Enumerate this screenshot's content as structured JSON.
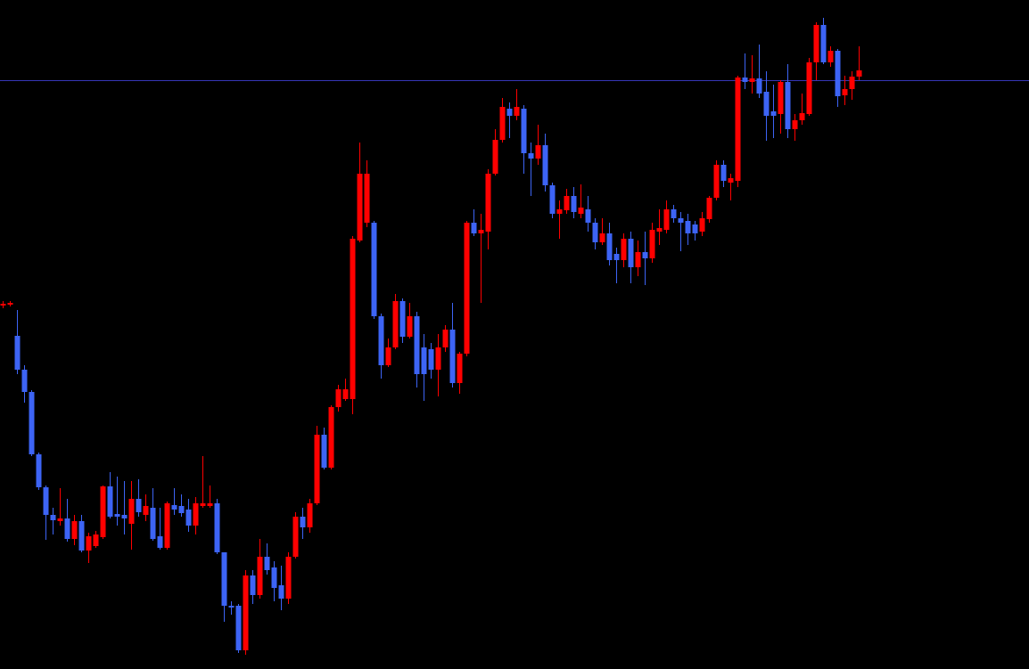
{
  "chart_data": {
    "type": "candlestick",
    "up_color": "#ff0000",
    "down_color": "#3d64f5",
    "price_line": 661,
    "price_line_color": "#3535b5",
    "ylim": [
      0,
      751
    ],
    "open": [
      408,
      409,
      374,
      336,
      311,
      241,
      204,
      173,
      166,
      169,
      146,
      166,
      133,
      138,
      148,
      205,
      174,
      173,
      163,
      191,
      173,
      181,
      149,
      136,
      184,
      183,
      179,
      161,
      183,
      183,
      186,
      131,
      71,
      71,
      21,
      105,
      83,
      126,
      114,
      94,
      79,
      126,
      171,
      159,
      186,
      263,
      226,
      294,
      303,
      303,
      481,
      501,
      501,
      396,
      341,
      361,
      413,
      373,
      396,
      361,
      359,
      336,
      361,
      381,
      321,
      354,
      501,
      489,
      491,
      556,
      594,
      629,
      621,
      629,
      579,
      573,
      588,
      543,
      511,
      515,
      531,
      511,
      516,
      501,
      479,
      489,
      466,
      459,
      483,
      451,
      468,
      461,
      491,
      493,
      516,
      506,
      503,
      499,
      491,
      505,
      529,
      566,
      546,
      548,
      664,
      659,
      663,
      648,
      626,
      623,
      659,
      606,
      616,
      623,
      681,
      723,
      681,
      694,
      644,
      651,
      665
    ],
    "high": [
      413,
      413,
      403,
      341,
      313,
      243,
      206,
      181,
      203,
      191,
      173,
      173,
      153,
      155,
      206,
      221,
      216,
      211,
      211,
      213,
      196,
      203,
      181,
      188,
      203,
      196,
      191,
      193,
      239,
      206,
      191,
      131,
      76,
      73,
      111,
      111,
      146,
      141,
      121,
      116,
      131,
      176,
      181,
      191,
      273,
      271,
      296,
      319,
      326,
      486,
      591,
      571,
      503,
      399,
      371,
      421,
      416,
      411,
      401,
      376,
      366,
      376,
      386,
      411,
      356,
      503,
      516,
      511,
      561,
      606,
      641,
      636,
      651,
      633,
      591,
      611,
      601,
      546,
      526,
      539,
      541,
      544,
      531,
      506,
      506,
      501,
      473,
      489,
      491,
      481,
      491,
      501,
      516,
      526,
      521,
      513,
      511,
      503,
      513,
      531,
      571,
      571,
      556,
      666,
      691,
      689,
      701,
      671,
      656,
      661,
      679,
      623,
      646,
      686,
      726,
      731,
      699,
      696,
      666,
      671,
      699
    ],
    "low": [
      405,
      407,
      331,
      299,
      239,
      201,
      145,
      151,
      161,
      143,
      139,
      131,
      119,
      136,
      146,
      169,
      161,
      151,
      134,
      171,
      166,
      144,
      134,
      134,
      173,
      171,
      154,
      151,
      181,
      181,
      129,
      53,
      61,
      18,
      16,
      73,
      79,
      106,
      76,
      66,
      73,
      124,
      146,
      153,
      184,
      224,
      224,
      289,
      301,
      286,
      479,
      496,
      393,
      326,
      339,
      359,
      366,
      371,
      316,
      301,
      326,
      306,
      356,
      316,
      309,
      351,
      486,
      411,
      471,
      554,
      591,
      596,
      616,
      556,
      531,
      566,
      536,
      506,
      483,
      511,
      506,
      506,
      491,
      471,
      476,
      453,
      433,
      451,
      433,
      441,
      431,
      456,
      476,
      489,
      501,
      469,
      476,
      481,
      486,
      501,
      526,
      541,
      526,
      541,
      651,
      646,
      641,
      593,
      596,
      601,
      596,
      593,
      611,
      621,
      661,
      679,
      676,
      631,
      633,
      639,
      661
    ],
    "close": [
      410,
      411,
      336,
      311,
      241,
      204,
      173,
      167,
      169,
      146,
      166,
      133,
      149,
      151,
      205,
      171,
      171,
      169,
      191,
      176,
      183,
      146,
      136,
      186,
      179,
      175,
      161,
      186,
      186,
      186,
      131,
      71,
      69,
      21,
      105,
      83,
      126,
      111,
      91,
      79,
      126,
      171,
      159,
      186,
      263,
      226,
      294,
      314,
      314,
      483,
      556,
      556,
      396,
      341,
      361,
      413,
      373,
      396,
      331,
      331,
      336,
      361,
      381,
      321,
      354,
      501,
      489,
      493,
      556,
      594,
      631,
      621,
      631,
      579,
      573,
      588,
      543,
      511,
      516,
      531,
      513,
      518,
      501,
      479,
      489,
      459,
      459,
      483,
      451,
      468,
      461,
      493,
      495,
      516,
      506,
      501,
      489,
      489,
      506,
      529,
      566,
      548,
      551,
      664,
      659,
      663,
      646,
      621,
      621,
      659,
      606,
      616,
      624,
      681,
      723,
      681,
      694,
      643,
      651,
      665,
      672
    ]
  }
}
